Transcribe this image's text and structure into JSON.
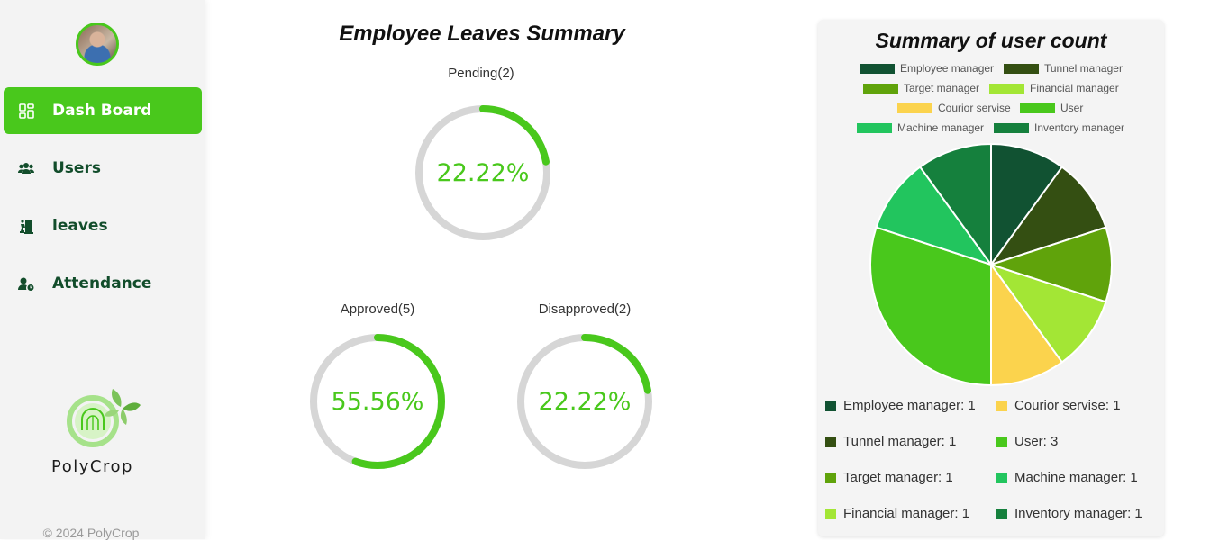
{
  "sidebar": {
    "nav": [
      {
        "label": "Dash Board",
        "icon": "dashboard-icon"
      },
      {
        "label": "Users",
        "icon": "users-icon"
      },
      {
        "label": "leaves",
        "icon": "door-exit-icon"
      },
      {
        "label": "Attendance",
        "icon": "user-clock-icon"
      }
    ],
    "brand": "PolyCrop",
    "copyright": "© 2024 PolyCrop"
  },
  "leaves": {
    "title": "Employee Leaves Summary",
    "pending": {
      "label": "Pending(2)",
      "percent_text": "22.22%",
      "percent": 22.22
    },
    "approved": {
      "label": "Approved(5)",
      "percent_text": "55.56%",
      "percent": 55.56
    },
    "disapproved": {
      "label": "Disapproved(2)",
      "percent_text": "22.22%",
      "percent": 22.22
    }
  },
  "user_count": {
    "title": "Summary of user count",
    "legend_lines": [
      "Employee manager: 1",
      "Courior servise: 1",
      "Tunnel manager: 1",
      "User: 3",
      "Target manager: 1",
      "Machine manager: 1",
      "Financial manager: 1",
      "Inventory manager: 1"
    ]
  },
  "colors": {
    "accent": "#49c81c",
    "nav_text": "#124d2b",
    "track": "#d6d6d6"
  },
  "chart_data": {
    "type": "pie",
    "title": "Summary of user count",
    "categories": [
      "Employee manager",
      "Tunnel manager",
      "Target manager",
      "Financial manager",
      "Courior servise",
      "User",
      "Machine manager",
      "Inventory manager"
    ],
    "values": [
      1,
      1,
      1,
      1,
      1,
      3,
      1,
      1
    ],
    "colors": [
      "#115232",
      "#344f12",
      "#60a30b",
      "#a3e635",
      "#fbd34d",
      "#49c81c",
      "#22c55e",
      "#15803d"
    ],
    "legend": "top"
  }
}
